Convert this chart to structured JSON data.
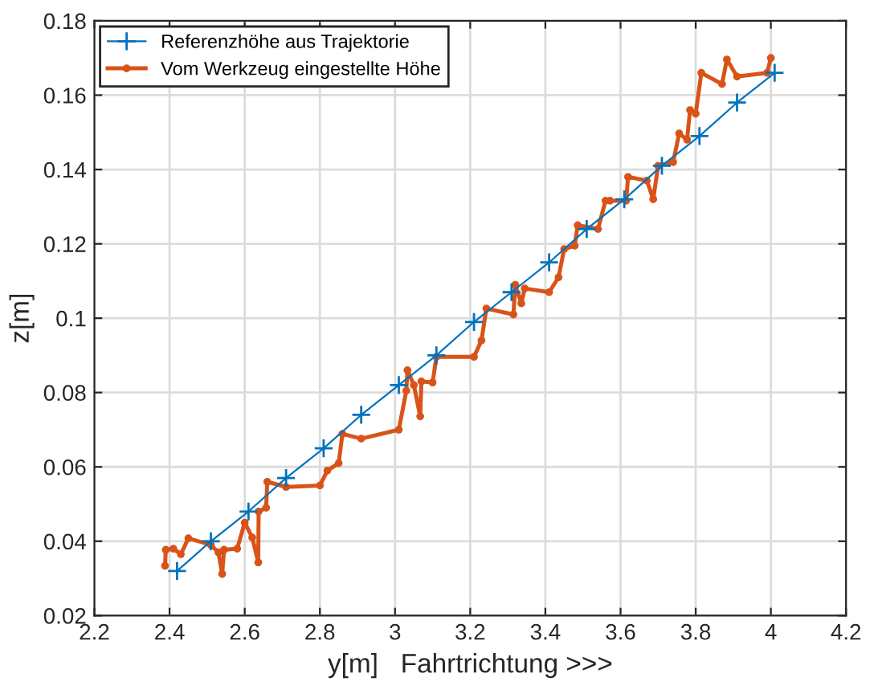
{
  "chart_data": {
    "type": "line",
    "xlabel": "y[m]   Fahrtrichtung >>>",
    "ylabel": "z[m]",
    "xlim": [
      2.2,
      4.2
    ],
    "xticks": [
      2.2,
      2.4,
      2.6,
      2.8,
      3,
      3.2,
      3.4,
      3.6,
      3.8,
      4,
      4.2
    ],
    "ylim": [
      0.02,
      0.18
    ],
    "yticks": [
      0.02,
      0.04,
      0.06,
      0.08,
      0.1,
      0.12,
      0.14,
      0.16,
      0.18
    ],
    "grid": true,
    "legend": "top left",
    "series": [
      {
        "name": "Referenzhöhe aus Trajektorie",
        "color": "#0072bd",
        "marker": "cross",
        "line_style": "solid",
        "x": [
          2.42,
          2.51,
          2.61,
          2.71,
          2.81,
          2.91,
          3.01,
          3.11,
          3.21,
          3.31,
          3.41,
          3.51,
          3.61,
          3.71,
          3.81,
          3.91,
          4.01
        ],
        "values": [
          0.032,
          0.04,
          0.048,
          0.057,
          0.065,
          0.074,
          0.082,
          0.09,
          0.099,
          0.107,
          0.115,
          0.124,
          0.132,
          0.141,
          0.149,
          0.158,
          0.166
        ]
      },
      {
        "name": "Vom Werkzeug eingestellte Höhe",
        "color": "#d95319",
        "marker": "circle",
        "line_style": "solid",
        "x": [
          2.388,
          2.39,
          2.41,
          2.43,
          2.45,
          2.51,
          2.53,
          2.54,
          2.545,
          2.58,
          2.6,
          2.62,
          2.636,
          2.637,
          2.657,
          2.66,
          2.71,
          2.8,
          2.82,
          2.85,
          2.86,
          2.91,
          3.01,
          3.03,
          3.033,
          3.05,
          3.067,
          3.07,
          3.1,
          3.11,
          3.21,
          3.23,
          3.243,
          3.315,
          3.32,
          3.336,
          3.345,
          3.41,
          3.435,
          3.45,
          3.478,
          3.486,
          3.54,
          3.56,
          3.572,
          3.615,
          3.62,
          3.67,
          3.687,
          3.7,
          3.74,
          3.756,
          3.777,
          3.785,
          3.8,
          3.815,
          3.87,
          3.883,
          3.91,
          3.99,
          4.0
        ],
        "values": [
          0.0334,
          0.0377,
          0.038,
          0.0365,
          0.0408,
          0.039,
          0.037,
          0.0312,
          0.0377,
          0.038,
          0.045,
          0.041,
          0.0343,
          0.048,
          0.049,
          0.056,
          0.0546,
          0.055,
          0.059,
          0.061,
          0.0689,
          0.0676,
          0.07,
          0.0805,
          0.086,
          0.082,
          0.0736,
          0.083,
          0.0827,
          0.0896,
          0.0896,
          0.094,
          0.1026,
          0.101,
          0.109,
          0.104,
          0.108,
          0.107,
          0.111,
          0.1186,
          0.1195,
          0.125,
          0.124,
          0.1316,
          0.1316,
          0.1316,
          0.138,
          0.137,
          0.132,
          0.141,
          0.142,
          0.1497,
          0.148,
          0.156,
          0.155,
          0.166,
          0.163,
          0.1696,
          0.165,
          0.166,
          0.17
        ]
      }
    ]
  }
}
